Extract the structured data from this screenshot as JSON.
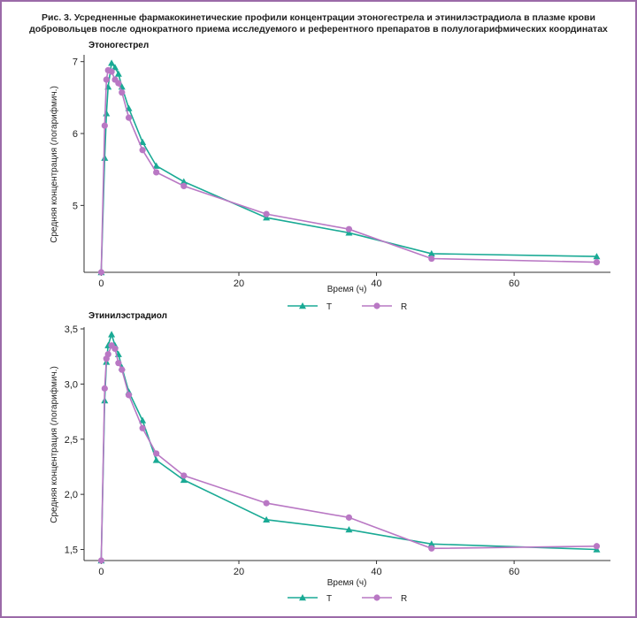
{
  "caption": "Рис. 3. Усредненные фармакокинетические профили концентрации этоногестрела и этинилэстрадиола в плазме крови добровольцев после однократного приема исследуемого и референтного препаратов в полулогарифмических координатах",
  "colors": {
    "T": "#1aaa95",
    "R": "#b978c4",
    "frame": "#9b6aa8"
  },
  "chart_data": [
    {
      "type": "line",
      "title": "Этоногестрел",
      "xlabel": "Время (ч)",
      "ylabel": "Средняя концентрация (логарифмич.)",
      "xlim": [
        -2.5,
        74
      ],
      "ylim": [
        4.07,
        7.07
      ],
      "xticks": [
        0,
        20,
        40,
        60
      ],
      "xtick_labels": [
        "0",
        "20",
        "40",
        "60"
      ],
      "yticks": [
        5,
        6,
        7
      ],
      "ytick_labels": [
        "5",
        "6",
        "7"
      ],
      "legend": [
        "T",
        "R"
      ],
      "series": [
        {
          "name": "T",
          "marker": "triangle",
          "x": [
            0,
            0.5,
            0.75,
            1,
            1.5,
            2,
            2.5,
            3,
            4,
            6,
            8,
            12,
            24,
            36,
            48,
            72
          ],
          "y": [
            4.07,
            5.66,
            6.28,
            6.65,
            6.98,
            6.92,
            6.83,
            6.65,
            6.35,
            5.88,
            5.55,
            5.33,
            4.83,
            4.62,
            4.33,
            4.29
          ]
        },
        {
          "name": "R",
          "marker": "circle",
          "x": [
            0,
            0.5,
            0.75,
            1,
            1.5,
            2,
            2.5,
            3,
            4,
            6,
            8,
            12,
            24,
            36,
            48,
            72
          ],
          "y": [
            4.07,
            6.11,
            6.75,
            6.88,
            6.86,
            6.75,
            6.7,
            6.57,
            6.22,
            5.77,
            5.46,
            5.27,
            4.88,
            4.67,
            4.26,
            4.21
          ]
        }
      ]
    },
    {
      "type": "line",
      "title": "Этинилэстрадиол",
      "xlabel": "Время (ч)",
      "ylabel": "Средняя концентрация (логарифмич.)",
      "xlim": [
        -2.5,
        74
      ],
      "ylim": [
        1.4,
        3.5
      ],
      "xticks": [
        0,
        20,
        40,
        60
      ],
      "xtick_labels": [
        "0",
        "20",
        "40",
        "60"
      ],
      "yticks": [
        1.5,
        2.0,
        2.5,
        3.0,
        3.5
      ],
      "ytick_labels": [
        "1,5",
        "2,0",
        "2,5",
        "3,0",
        "3,5"
      ],
      "legend": [
        "T",
        "R"
      ],
      "series": [
        {
          "name": "T",
          "marker": "triangle",
          "x": [
            0,
            0.5,
            0.75,
            1,
            1.5,
            2,
            2.5,
            3,
            4,
            6,
            8,
            12,
            24,
            36,
            48,
            72
          ],
          "y": [
            1.4,
            2.85,
            3.2,
            3.35,
            3.45,
            3.35,
            3.27,
            3.15,
            2.93,
            2.67,
            2.31,
            2.13,
            1.77,
            1.68,
            1.55,
            1.5
          ]
        },
        {
          "name": "R",
          "marker": "circle",
          "x": [
            0,
            0.5,
            0.75,
            1,
            1.5,
            2,
            2.5,
            3,
            4,
            6,
            8,
            12,
            24,
            36,
            48,
            72
          ],
          "y": [
            1.4,
            2.96,
            3.23,
            3.27,
            3.35,
            3.32,
            3.19,
            3.13,
            2.9,
            2.6,
            2.37,
            2.17,
            1.92,
            1.79,
            1.51,
            1.53
          ]
        }
      ]
    }
  ]
}
